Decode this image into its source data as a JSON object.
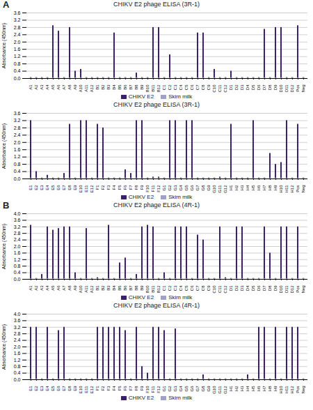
{
  "chart_data": [
    {
      "type": "bar",
      "title": "CHIKV E2 phage ELISA (3R-1)",
      "ylabel": "Absorbance (450nm)",
      "annotations": [
        "A"
      ],
      "categories": [
        "A1",
        "A2",
        "A3",
        "A4",
        "A5",
        "A6",
        "A7",
        "A8",
        "A9",
        "A10",
        "A11",
        "A12",
        "B1",
        "B2",
        "B3",
        "B4",
        "B5",
        "B6",
        "B7",
        "B8",
        "B9",
        "B10",
        "B11",
        "B12",
        "C1",
        "C2",
        "C3",
        "C4",
        "C5",
        "C6",
        "C7",
        "C8",
        "C9",
        "C10",
        "C11",
        "C12",
        "D1",
        "D2",
        "D3",
        "D4",
        "D5",
        "D6",
        "D7",
        "D8",
        "D9",
        "D10",
        "D11",
        "D12",
        "Pos",
        "Neg"
      ],
      "series": [
        {
          "name": "CHIKV E2",
          "type": "bar",
          "color": "#3d1f6e",
          "values": [
            0.05,
            0.05,
            0.05,
            0.05,
            2.9,
            2.6,
            0.05,
            2.8,
            0.4,
            0.5,
            0.05,
            0.05,
            0.05,
            0.05,
            0.05,
            2.5,
            0.05,
            0.05,
            0.05,
            0.3,
            0.05,
            0.05,
            2.8,
            2.8,
            0.05,
            1.3,
            0.05,
            0.05,
            0.05,
            0.05,
            2.5,
            2.5,
            0.05,
            0.5,
            0.05,
            0.05,
            0.4,
            0.05,
            0.05,
            0.05,
            0.05,
            0.05,
            2.7,
            0.05,
            2.8,
            2.8,
            0.05,
            0.05,
            2.9,
            0.05
          ]
        },
        {
          "name": "Skim milk",
          "type": "scatter",
          "color": "#a0a0cc",
          "values": [
            0.02,
            0.02,
            0.02,
            0.02,
            0.02,
            0.02,
            0.02,
            0.02,
            0.02,
            0.02,
            0.02,
            0.02,
            0.02,
            0.02,
            0.02,
            0.02,
            0.02,
            0.02,
            0.02,
            0.02,
            0.02,
            0.02,
            0.02,
            0.02,
            0.02,
            0.02,
            0.02,
            0.02,
            0.02,
            0.02,
            0.02,
            0.02,
            0.02,
            0.02,
            0.02,
            0.02,
            0.02,
            0.02,
            0.02,
            0.02,
            0.02,
            0.02,
            0.02,
            0.02,
            0.02,
            0.02,
            0.02,
            0.02,
            0.02,
            0.02
          ]
        }
      ],
      "ylim": [
        0,
        3.6
      ],
      "yticks": [
        {
          "value": 0,
          "label": "0.0"
        },
        0.4,
        0.8,
        1.2,
        1.6,
        {
          "value": 2.0,
          "label": "2.0"
        },
        2.4,
        2.8,
        3.2,
        3.6
      ],
      "grid": true,
      "legend": "bottom"
    },
    {
      "type": "bar",
      "title": "CHIKV E2 phage ELISA (3R-1)",
      "ylabel": "Absorbance (450nm)",
      "categories": [
        "E1",
        "E2",
        "E3",
        "E4",
        "E5",
        "E6",
        "E7",
        "E8",
        "E9",
        "E10",
        "E11",
        "E12",
        "F1",
        "F2",
        "F3",
        "F4",
        "F5",
        "F6",
        "F7",
        "F8",
        "F9",
        "F10",
        "F11",
        "F12",
        "G1",
        "G2",
        "G3",
        "G4",
        "G5",
        "G6",
        "G7",
        "G8",
        "G9",
        "G10",
        "G11",
        "G12",
        "H1",
        "H2",
        "H3",
        "H4",
        "H5",
        "H6",
        "H7",
        "H8",
        "H9",
        "H10",
        "H11",
        "H12",
        "Pos",
        "Neg"
      ],
      "series": [
        {
          "name": "CHIKV E2",
          "type": "bar",
          "color": "#3d1f6e",
          "values": [
            3.2,
            0.4,
            0.05,
            0.2,
            0.05,
            0.05,
            0.3,
            3.0,
            0.05,
            3.2,
            3.2,
            0.05,
            3.0,
            2.8,
            0.05,
            0.05,
            0.05,
            0.5,
            0.3,
            3.2,
            3.2,
            0.05,
            0.1,
            0.1,
            0.05,
            3.2,
            3.2,
            0.05,
            3.2,
            3.2,
            0.05,
            0.05,
            0.05,
            0.05,
            0.1,
            0.05,
            3.0,
            0.05,
            0.05,
            0.05,
            3.2,
            0.05,
            0.05,
            1.4,
            0.8,
            0.9,
            3.2,
            0.05,
            3.0,
            0.05
          ]
        },
        {
          "name": "Skim milk",
          "type": "scatter",
          "color": "#a0a0cc",
          "values": [
            0.02,
            0.02,
            0.02,
            0.02,
            0.02,
            0.02,
            0.02,
            0.02,
            0.02,
            0.02,
            0.02,
            0.02,
            0.02,
            0.02,
            0.02,
            0.02,
            0.02,
            0.02,
            0.02,
            0.02,
            0.02,
            0.02,
            0.02,
            0.02,
            0.02,
            0.02,
            0.02,
            0.02,
            0.02,
            0.02,
            0.02,
            0.02,
            0.02,
            0.02,
            0.02,
            0.02,
            0.02,
            0.02,
            0.02,
            0.02,
            0.02,
            0.02,
            0.02,
            0.02,
            0.02,
            0.02,
            0.02,
            0.02,
            0.02,
            0.02
          ]
        }
      ],
      "ylim": [
        0,
        3.6
      ],
      "yticks": [
        {
          "value": 0,
          "label": "0.0"
        },
        0.4,
        0.8,
        1.2,
        1.6,
        {
          "value": 2.0,
          "label": "2.0"
        },
        2.4,
        2.8,
        3.2,
        3.6
      ],
      "grid": true,
      "legend": "bottom"
    },
    {
      "type": "bar",
      "title": "CHIKV E2 phage ELISA (4R-1)",
      "ylabel": "Absorbance (450nm)",
      "annotations": [
        "B"
      ],
      "categories": [
        "A1",
        "A2",
        "A3",
        "A4",
        "A5",
        "A6",
        "A7",
        "A8",
        "A9",
        "A10",
        "A11",
        "A12",
        "B1",
        "B2",
        "B3",
        "B4",
        "B5",
        "B6",
        "B7",
        "B8",
        "B9",
        "B10",
        "B11",
        "B12",
        "C1",
        "C2",
        "C3",
        "C4",
        "C5",
        "C6",
        "C7",
        "C8",
        "C9",
        "C10",
        "C11",
        "C12",
        "D1",
        "D2",
        "D3",
        "D4",
        "D5",
        "D6",
        "D7",
        "D8",
        "D9",
        "D10",
        "D11",
        "D12",
        "Pos",
        "Neg"
      ],
      "series": [
        {
          "name": "CHIKV E2",
          "type": "bar",
          "color": "#3d1f6e",
          "values": [
            3.3,
            0.05,
            0.3,
            3.2,
            3.0,
            3.1,
            3.2,
            3.2,
            0.4,
            0.05,
            3.1,
            0.05,
            0.1,
            0.05,
            3.3,
            0.05,
            1.0,
            1.3,
            0.05,
            0.3,
            3.2,
            3.3,
            3.2,
            0.05,
            0.4,
            0.05,
            3.2,
            3.2,
            3.2,
            0.05,
            2.7,
            2.4,
            0.05,
            0.05,
            3.2,
            0.1,
            0.05,
            3.2,
            3.2,
            0.05,
            0.05,
            0.05,
            3.2,
            1.6,
            0.05,
            3.2,
            3.2,
            0.05,
            3.2,
            0.05
          ]
        },
        {
          "name": "Skim milk",
          "type": "scatter",
          "color": "#a0a0cc",
          "values": [
            0.02,
            0.02,
            0.02,
            0.02,
            0.02,
            0.02,
            0.02,
            0.02,
            0.02,
            0.02,
            0.02,
            0.02,
            0.02,
            0.02,
            0.02,
            0.02,
            0.02,
            0.02,
            0.02,
            0.02,
            0.02,
            0.02,
            0.02,
            0.02,
            0.02,
            0.02,
            0.02,
            0.02,
            0.02,
            0.02,
            0.02,
            0.02,
            0.02,
            0.02,
            0.02,
            0.02,
            0.02,
            0.02,
            0.02,
            0.02,
            0.02,
            0.02,
            0.02,
            0.02,
            0.02,
            0.02,
            0.02,
            0.02,
            0.02,
            0.02
          ]
        }
      ],
      "ylim": [
        0,
        4.0
      ],
      "yticks": [
        {
          "value": 0,
          "label": "0.0"
        },
        0.4,
        0.8,
        1.2,
        1.6,
        {
          "value": 2.0,
          "label": "2.0"
        },
        2.4,
        2.8,
        3.2,
        3.6,
        {
          "value": 4.0,
          "label": "4.0"
        }
      ],
      "grid": true,
      "legend": "bottom"
    },
    {
      "type": "bar",
      "title": "CHIKV E2 phage ELISA (4R-1)",
      "ylabel": "Absorbance (450nm)",
      "categories": [
        "E1",
        "E2",
        "E3",
        "E4",
        "E5",
        "E6",
        "E7",
        "E8",
        "E9",
        "E10",
        "E11",
        "E12",
        "F1",
        "F2",
        "F3",
        "F4",
        "F5",
        "F6",
        "F7",
        "F8",
        "F9",
        "F10",
        "F11",
        "F12",
        "G1",
        "G2",
        "G3",
        "G4",
        "G5",
        "G6",
        "G7",
        "G8",
        "G9",
        "G10",
        "G11",
        "G12",
        "H1",
        "H2",
        "H3",
        "H4",
        "H5",
        "H6",
        "H7",
        "H8",
        "H9",
        "H10",
        "H11",
        "H12",
        "Pos",
        "Neg"
      ],
      "series": [
        {
          "name": "CHIKV E2",
          "type": "bar",
          "color": "#3d1f6e",
          "values": [
            3.2,
            3.2,
            0.05,
            3.2,
            0.05,
            3.0,
            3.2,
            0.05,
            0.05,
            0.05,
            0.05,
            0.05,
            3.2,
            3.2,
            3.2,
            3.2,
            3.2,
            3.0,
            0.05,
            3.2,
            0.8,
            0.4,
            3.2,
            3.2,
            3.0,
            0.05,
            3.1,
            0.05,
            0.05,
            0.05,
            0.05,
            0.3,
            0.05,
            0.05,
            0.05,
            0.05,
            0.05,
            0.05,
            0.05,
            0.3,
            0.05,
            3.2,
            3.2,
            0.05,
            3.2,
            0.05,
            3.2,
            3.2,
            3.2,
            0.05
          ]
        },
        {
          "name": "Skim milk",
          "type": "scatter",
          "color": "#a0a0cc",
          "values": [
            0.02,
            0.02,
            0.02,
            0.02,
            0.02,
            0.02,
            0.02,
            0.02,
            0.02,
            0.02,
            0.02,
            0.02,
            0.02,
            0.02,
            0.02,
            0.02,
            0.02,
            0.02,
            0.02,
            0.02,
            0.02,
            0.02,
            0.02,
            0.02,
            0.02,
            0.02,
            0.02,
            0.02,
            0.02,
            0.02,
            0.02,
            0.02,
            0.02,
            0.02,
            0.02,
            0.02,
            0.02,
            0.02,
            0.02,
            0.02,
            0.02,
            0.02,
            0.02,
            0.02,
            0.02,
            0.02,
            0.02,
            0.02,
            0.02,
            0.02
          ]
        }
      ],
      "ylim": [
        0,
        4.0
      ],
      "yticks": [
        {
          "value": 0,
          "label": "0.0"
        },
        0.4,
        0.8,
        1.2,
        1.6,
        {
          "value": 2.0,
          "label": "2.0"
        },
        2.4,
        2.8,
        3.2,
        3.6,
        {
          "value": 4.0,
          "label": "4.0"
        }
      ],
      "grid": true,
      "legend": "bottom"
    }
  ]
}
